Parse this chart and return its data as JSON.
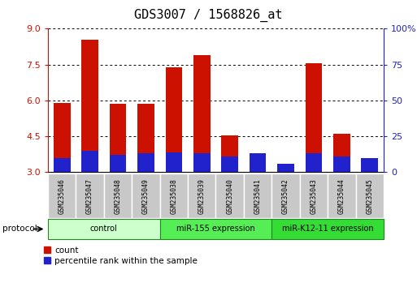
{
  "title": "GDS3007 / 1568826_at",
  "samples": [
    "GSM235046",
    "GSM235047",
    "GSM235048",
    "GSM235049",
    "GSM235038",
    "GSM235039",
    "GSM235040",
    "GSM235041",
    "GSM235042",
    "GSM235043",
    "GSM235044",
    "GSM235045"
  ],
  "count_values": [
    5.9,
    8.55,
    5.85,
    5.85,
    7.4,
    7.9,
    4.55,
    3.3,
    3.2,
    7.55,
    4.6,
    3.3
  ],
  "percentile_values": [
    10,
    15,
    12,
    13,
    14,
    13,
    11,
    13,
    6,
    13,
    11,
    10
  ],
  "baseline": 3.0,
  "ylim_left": [
    3.0,
    9.0
  ],
  "ylim_right": [
    0,
    100
  ],
  "yticks_left": [
    3,
    4.5,
    6,
    7.5,
    9
  ],
  "yticks_right": [
    0,
    25,
    50,
    75,
    100
  ],
  "bar_color": "#cc1100",
  "blue_color": "#2222cc",
  "grid_color": "#000000",
  "title_fontsize": 11,
  "groups": [
    {
      "label": "control",
      "start": 0,
      "end": 4,
      "color": "#ccffcc"
    },
    {
      "label": "miR-155 expression",
      "start": 4,
      "end": 8,
      "color": "#55ee55"
    },
    {
      "label": "miR-K12-11 expression",
      "start": 8,
      "end": 12,
      "color": "#33dd33"
    }
  ],
  "protocol_label": "protocol",
  "legend_items": [
    "count",
    "percentile rank within the sample"
  ],
  "bar_width": 0.6
}
